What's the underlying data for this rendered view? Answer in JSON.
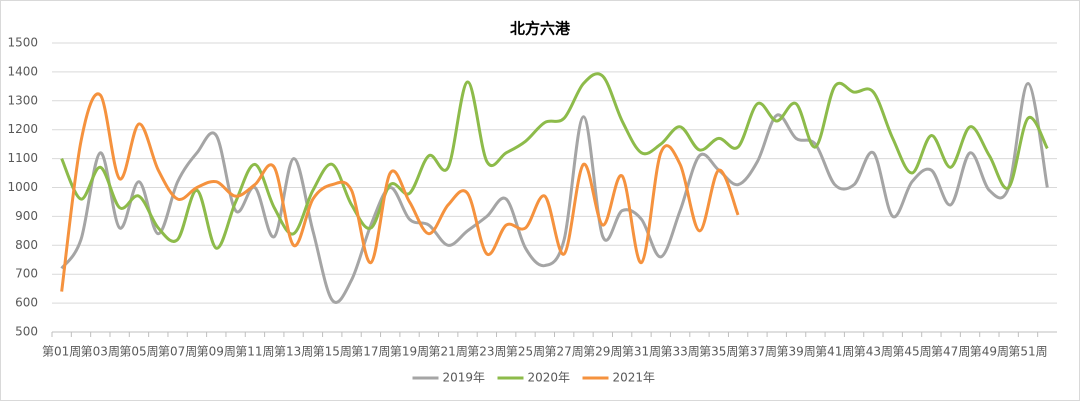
{
  "chart_data": {
    "type": "line",
    "title": "北方六港",
    "categories": [
      "第01周",
      null,
      "第03周",
      null,
      "第05周",
      null,
      "第07周",
      null,
      "第09周",
      null,
      "第11周",
      null,
      "第13周",
      null,
      "第15周",
      null,
      "第17周",
      null,
      "第19周",
      null,
      "第21周",
      null,
      "第23周",
      null,
      "第25周",
      null,
      "第27周",
      null,
      "第29周",
      null,
      "第31周",
      null,
      "第33周",
      null,
      "第35周",
      null,
      "第37周",
      null,
      "第39周",
      null,
      "第41周",
      null,
      "第43周",
      null,
      "第45周",
      null,
      "第47周",
      null,
      "第49周",
      null,
      "第51周",
      null
    ],
    "series": [
      {
        "name": "2019年",
        "color": "#a5a5a5",
        "values": [
          720,
          820,
          1120,
          860,
          1020,
          840,
          1020,
          1120,
          1180,
          920,
          1000,
          830,
          1100,
          850,
          610,
          680,
          870,
          1000,
          890,
          870,
          800,
          850,
          900,
          960,
          790,
          730,
          820,
          1245,
          830,
          920,
          890,
          760,
          920,
          1110,
          1060,
          1010,
          1090,
          1250,
          1170,
          1150,
          1010,
          1010,
          1120,
          900,
          1020,
          1060,
          940,
          1120,
          990,
          1000,
          1360,
          1000
        ]
      },
      {
        "name": "2020年",
        "color": "#8dbb4a",
        "values": [
          1100,
          960,
          1070,
          930,
          970,
          860,
          820,
          990,
          790,
          950,
          1080,
          930,
          840,
          990,
          1080,
          940,
          860,
          1010,
          980,
          1110,
          1070,
          1365,
          1090,
          1120,
          1160,
          1225,
          1240,
          1360,
          1385,
          1230,
          1120,
          1150,
          1210,
          1130,
          1170,
          1140,
          1290,
          1230,
          1290,
          1140,
          1350,
          1330,
          1330,
          1170,
          1050,
          1180,
          1070,
          1210,
          1110,
          1000,
          1240,
          1135
        ]
      },
      {
        "name": "2021年",
        "color": "#f5923e",
        "values": [
          640,
          1160,
          1320,
          1030,
          1220,
          1060,
          960,
          1000,
          1020,
          970,
          1010,
          1070,
          800,
          960,
          1010,
          990,
          740,
          1050,
          950,
          840,
          940,
          980,
          770,
          870,
          860,
          970,
          770,
          1080,
          870,
          1040,
          740,
          1120,
          1080,
          850,
          1060,
          905,
          null,
          null,
          null,
          null,
          null,
          null,
          null,
          null,
          null,
          null,
          null,
          null,
          null,
          null,
          null,
          null
        ]
      }
    ],
    "ylim": [
      500,
      1500
    ],
    "yticks": [
      500,
      600,
      700,
      800,
      900,
      1000,
      1100,
      1200,
      1300,
      1400,
      1500
    ],
    "grid": true,
    "smooth": true,
    "legend": "bottom"
  }
}
